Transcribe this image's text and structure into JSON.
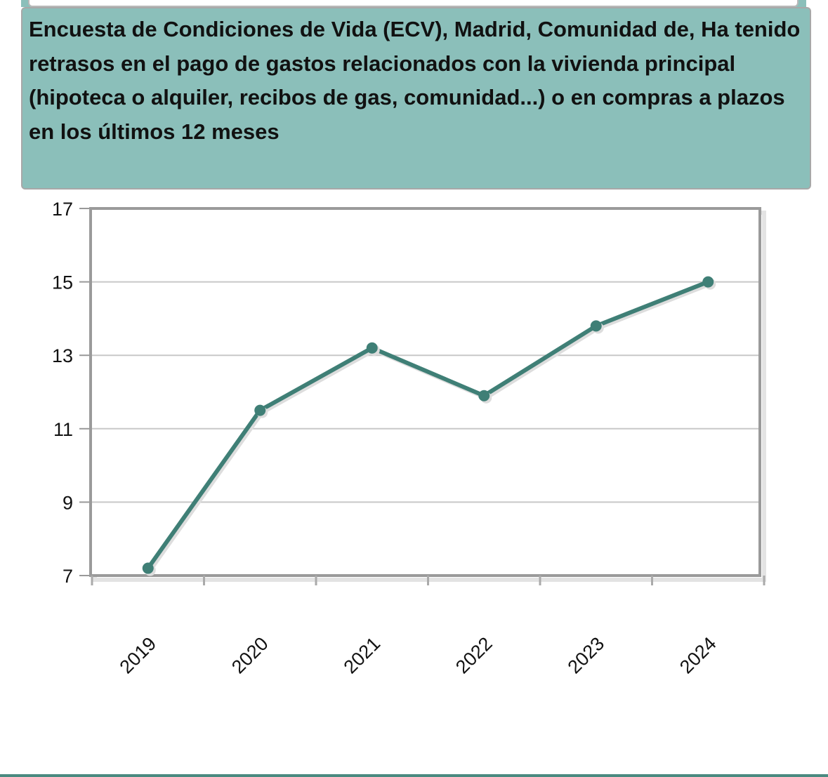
{
  "chart_data": {
    "type": "line",
    "title": "Encuesta de Condiciones de Vida (ECV), Madrid, Comunidad de, Ha tenido retrasos en el pago de gastos relacionados con la vivienda principal (hipoteca o alquiler, recibos de gas, comunidad...) o en compras a plazos en los últimos 12 meses",
    "categories": [
      "2019",
      "2020",
      "2021",
      "2022",
      "2023",
      "2024"
    ],
    "values": [
      7.2,
      11.5,
      13.2,
      11.9,
      13.8,
      15.0
    ],
    "yticks": [
      7,
      9,
      11,
      13,
      15,
      17
    ],
    "ylim": [
      7,
      17
    ],
    "xlabel": "",
    "ylabel": "",
    "grid": true,
    "legend": "none",
    "colors": {
      "line": "#3f7f76",
      "title_background": "#8bbfba"
    }
  }
}
